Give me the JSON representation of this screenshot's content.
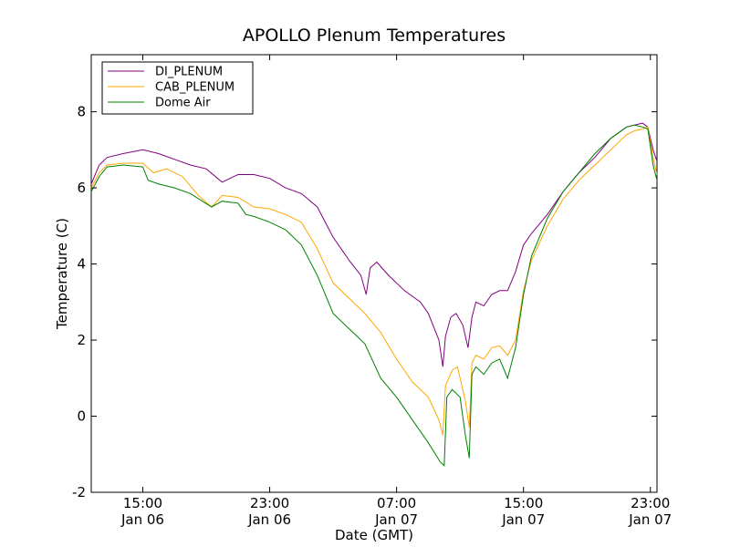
{
  "chart_data": {
    "type": "line",
    "title": "APOLLO Plenum Temperatures",
    "xlabel": "Date (GMT)",
    "ylabel": "Temperature (C)",
    "x_unit": "GMT date-time",
    "xlim": [
      "2015-01-06 11:45",
      "2015-01-07 23:25"
    ],
    "ylim": [
      -2,
      9.5
    ],
    "yticks": [
      -2,
      0,
      2,
      4,
      6,
      8
    ],
    "xticks": [
      {
        "t": "2015-01-06 15:00",
        "time": "15:00",
        "date": "Jan 06"
      },
      {
        "t": "2015-01-06 23:00",
        "time": "23:00",
        "date": "Jan 06"
      },
      {
        "t": "2015-01-07 07:00",
        "time": "07:00",
        "date": "Jan 07"
      },
      {
        "t": "2015-01-07 15:00",
        "time": "15:00",
        "date": "Jan 07"
      },
      {
        "t": "2015-01-07 23:00",
        "time": "23:00",
        "date": "Jan 07"
      }
    ],
    "legend_position": "top-left",
    "grid": false,
    "series": [
      {
        "name": "DI_PLENUM",
        "color": "#800080",
        "points": [
          [
            "2015-01-06 11:45",
            6.1
          ],
          [
            "2015-01-06 12:15",
            6.6
          ],
          [
            "2015-01-06 12:45",
            6.8
          ],
          [
            "2015-01-06 13:45",
            6.9
          ],
          [
            "2015-01-06 15:00",
            7.0
          ],
          [
            "2015-01-06 16:00",
            6.9
          ],
          [
            "2015-01-06 17:00",
            6.75
          ],
          [
            "2015-01-06 18:00",
            6.6
          ],
          [
            "2015-01-06 19:00",
            6.5
          ],
          [
            "2015-01-06 20:00",
            6.15
          ],
          [
            "2015-01-06 21:00",
            6.35
          ],
          [
            "2015-01-06 22:00",
            6.35
          ],
          [
            "2015-01-06 23:00",
            6.25
          ],
          [
            "2015-01-07 00:00",
            6.0
          ],
          [
            "2015-01-07 01:00",
            5.85
          ],
          [
            "2015-01-07 02:00",
            5.5
          ],
          [
            "2015-01-07 03:00",
            4.7
          ],
          [
            "2015-01-07 04:00",
            4.1
          ],
          [
            "2015-01-07 04:45",
            3.7
          ],
          [
            "2015-01-07 05:05",
            3.2
          ],
          [
            "2015-01-07 05:20",
            3.9
          ],
          [
            "2015-01-07 05:45",
            4.05
          ],
          [
            "2015-01-07 06:30",
            3.7
          ],
          [
            "2015-01-07 07:30",
            3.3
          ],
          [
            "2015-01-07 08:30",
            3.0
          ],
          [
            "2015-01-07 09:00",
            2.7
          ],
          [
            "2015-01-07 09:40",
            2.0
          ],
          [
            "2015-01-07 09:55",
            1.3
          ],
          [
            "2015-01-07 10:05",
            2.1
          ],
          [
            "2015-01-07 10:25",
            2.6
          ],
          [
            "2015-01-07 10:45",
            2.7
          ],
          [
            "2015-01-07 11:10",
            2.4
          ],
          [
            "2015-01-07 11:30",
            1.8
          ],
          [
            "2015-01-07 11:45",
            2.6
          ],
          [
            "2015-01-07 12:00",
            3.0
          ],
          [
            "2015-01-07 12:30",
            2.9
          ],
          [
            "2015-01-07 13:00",
            3.2
          ],
          [
            "2015-01-07 13:30",
            3.3
          ],
          [
            "2015-01-07 14:00",
            3.3
          ],
          [
            "2015-01-07 14:30",
            3.8
          ],
          [
            "2015-01-07 15:00",
            4.5
          ],
          [
            "2015-01-07 15:30",
            4.8
          ],
          [
            "2015-01-07 16:30",
            5.3
          ],
          [
            "2015-01-07 17:30",
            5.9
          ],
          [
            "2015-01-07 18:30",
            6.4
          ],
          [
            "2015-01-07 19:30",
            6.8
          ],
          [
            "2015-01-07 20:30",
            7.3
          ],
          [
            "2015-01-07 21:30",
            7.6
          ],
          [
            "2015-01-07 22:00",
            7.65
          ],
          [
            "2015-01-07 22:30",
            7.7
          ],
          [
            "2015-01-07 22:50",
            7.6
          ],
          [
            "2015-01-07 23:10",
            7.0
          ],
          [
            "2015-01-07 23:25",
            6.7
          ]
        ]
      },
      {
        "name": "CAB_PLENUM",
        "color": "#ffa500",
        "points": [
          [
            "2015-01-06 11:45",
            6.0
          ],
          [
            "2015-01-06 12:15",
            6.4
          ],
          [
            "2015-01-06 12:45",
            6.6
          ],
          [
            "2015-01-06 13:45",
            6.65
          ],
          [
            "2015-01-06 15:00",
            6.65
          ],
          [
            "2015-01-06 15:40",
            6.4
          ],
          [
            "2015-01-06 16:30",
            6.5
          ],
          [
            "2015-01-06 17:30",
            6.3
          ],
          [
            "2015-01-06 18:30",
            5.8
          ],
          [
            "2015-01-06 19:20",
            5.5
          ],
          [
            "2015-01-06 20:00",
            5.8
          ],
          [
            "2015-01-06 21:00",
            5.75
          ],
          [
            "2015-01-06 22:00",
            5.5
          ],
          [
            "2015-01-06 23:00",
            5.45
          ],
          [
            "2015-01-07 00:00",
            5.3
          ],
          [
            "2015-01-07 01:00",
            5.1
          ],
          [
            "2015-01-07 02:00",
            4.4
          ],
          [
            "2015-01-07 03:00",
            3.5
          ],
          [
            "2015-01-07 04:00",
            3.1
          ],
          [
            "2015-01-07 05:00",
            2.7
          ],
          [
            "2015-01-07 06:00",
            2.2
          ],
          [
            "2015-01-07 07:00",
            1.5
          ],
          [
            "2015-01-07 08:00",
            0.9
          ],
          [
            "2015-01-07 09:00",
            0.5
          ],
          [
            "2015-01-07 09:40",
            -0.1
          ],
          [
            "2015-01-07 09:55",
            -0.5
          ],
          [
            "2015-01-07 10:05",
            0.8
          ],
          [
            "2015-01-07 10:30",
            1.2
          ],
          [
            "2015-01-07 10:50",
            1.3
          ],
          [
            "2015-01-07 11:20",
            0.4
          ],
          [
            "2015-01-07 11:35",
            -0.3
          ],
          [
            "2015-01-07 11:45",
            1.4
          ],
          [
            "2015-01-07 12:00",
            1.6
          ],
          [
            "2015-01-07 12:30",
            1.5
          ],
          [
            "2015-01-07 13:00",
            1.8
          ],
          [
            "2015-01-07 13:30",
            1.85
          ],
          [
            "2015-01-07 14:00",
            1.6
          ],
          [
            "2015-01-07 14:30",
            2.0
          ],
          [
            "2015-01-07 15:00",
            3.3
          ],
          [
            "2015-01-07 15:30",
            4.1
          ],
          [
            "2015-01-07 16:30",
            5.0
          ],
          [
            "2015-01-07 17:30",
            5.7
          ],
          [
            "2015-01-07 18:30",
            6.2
          ],
          [
            "2015-01-07 19:30",
            6.6
          ],
          [
            "2015-01-07 20:30",
            7.0
          ],
          [
            "2015-01-07 21:30",
            7.4
          ],
          [
            "2015-01-07 22:00",
            7.5
          ],
          [
            "2015-01-07 22:30",
            7.55
          ],
          [
            "2015-01-07 22:50",
            7.6
          ],
          [
            "2015-01-07 23:10",
            6.8
          ],
          [
            "2015-01-07 23:25",
            6.35
          ]
        ]
      },
      {
        "name": "Dome Air",
        "color": "#008000",
        "points": [
          [
            "2015-01-06 11:45",
            5.9
          ],
          [
            "2015-01-06 12:15",
            6.3
          ],
          [
            "2015-01-06 12:45",
            6.55
          ],
          [
            "2015-01-06 13:45",
            6.6
          ],
          [
            "2015-01-06 15:00",
            6.55
          ],
          [
            "2015-01-06 15:20",
            6.2
          ],
          [
            "2015-01-06 16:00",
            6.1
          ],
          [
            "2015-01-06 17:00",
            6.0
          ],
          [
            "2015-01-06 18:00",
            5.85
          ],
          [
            "2015-01-06 19:20",
            5.5
          ],
          [
            "2015-01-06 20:00",
            5.65
          ],
          [
            "2015-01-06 21:00",
            5.6
          ],
          [
            "2015-01-06 21:30",
            5.3
          ],
          [
            "2015-01-06 22:00",
            5.25
          ],
          [
            "2015-01-06 23:00",
            5.1
          ],
          [
            "2015-01-07 00:00",
            4.9
          ],
          [
            "2015-01-07 01:00",
            4.5
          ],
          [
            "2015-01-07 02:00",
            3.7
          ],
          [
            "2015-01-07 03:00",
            2.7
          ],
          [
            "2015-01-07 04:00",
            2.3
          ],
          [
            "2015-01-07 05:00",
            1.9
          ],
          [
            "2015-01-07 06:00",
            1.0
          ],
          [
            "2015-01-07 07:00",
            0.5
          ],
          [
            "2015-01-07 08:00",
            -0.1
          ],
          [
            "2015-01-07 09:00",
            -0.7
          ],
          [
            "2015-01-07 09:45",
            -1.2
          ],
          [
            "2015-01-07 10:00",
            -1.3
          ],
          [
            "2015-01-07 10:10",
            0.5
          ],
          [
            "2015-01-07 10:30",
            0.7
          ],
          [
            "2015-01-07 11:00",
            0.5
          ],
          [
            "2015-01-07 11:20",
            -0.5
          ],
          [
            "2015-01-07 11:35",
            -1.1
          ],
          [
            "2015-01-07 11:45",
            1.1
          ],
          [
            "2015-01-07 12:00",
            1.3
          ],
          [
            "2015-01-07 12:30",
            1.1
          ],
          [
            "2015-01-07 13:00",
            1.4
          ],
          [
            "2015-01-07 13:30",
            1.5
          ],
          [
            "2015-01-07 14:00",
            1.0
          ],
          [
            "2015-01-07 14:30",
            1.8
          ],
          [
            "2015-01-07 15:00",
            3.2
          ],
          [
            "2015-01-07 15:30",
            4.2
          ],
          [
            "2015-01-07 16:30",
            5.2
          ],
          [
            "2015-01-07 17:30",
            5.9
          ],
          [
            "2015-01-07 18:30",
            6.4
          ],
          [
            "2015-01-07 19:30",
            6.9
          ],
          [
            "2015-01-07 20:30",
            7.3
          ],
          [
            "2015-01-07 21:30",
            7.6
          ],
          [
            "2015-01-07 22:00",
            7.65
          ],
          [
            "2015-01-07 22:30",
            7.6
          ],
          [
            "2015-01-07 22:50",
            7.55
          ],
          [
            "2015-01-07 23:10",
            6.6
          ],
          [
            "2015-01-07 23:25",
            6.2
          ]
        ]
      }
    ]
  }
}
